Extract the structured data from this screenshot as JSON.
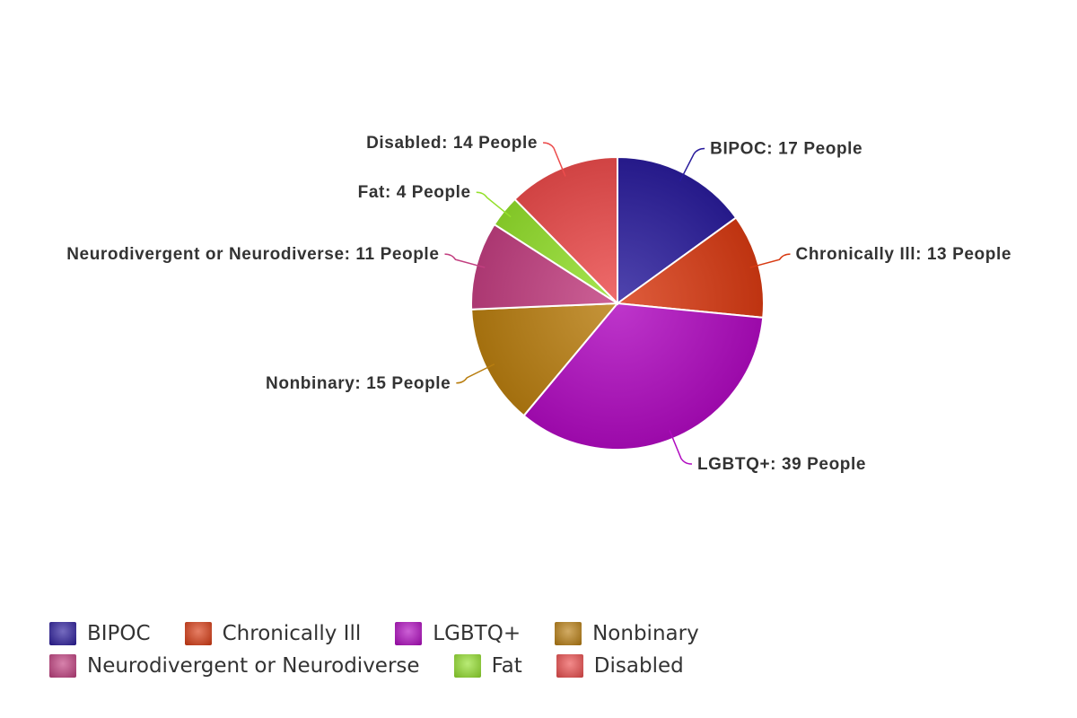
{
  "chart_data": {
    "type": "pie",
    "title": "",
    "categories": [
      "BIPOC",
      "Chronically Ill",
      "LGBTQ+",
      "Nonbinary",
      "Neurodivergent or Neurodiverse",
      "Fat",
      "Disabled"
    ],
    "values": [
      17,
      13,
      39,
      15,
      11,
      4,
      14
    ],
    "data_labels": [
      "BIPOC: 17 People",
      "Chronically Ill: 13 People",
      "LGBTQ+: 39 People",
      "Nonbinary: 15 People",
      "Neurodivergent or Neurodiverse: 11 People",
      "Fat: 4 People",
      "Disabled: 14 People"
    ],
    "colors": [
      "#2a1c9c",
      "#d83a12",
      "#b00ac0",
      "#b97e10",
      "#c23f80",
      "#94e02c",
      "#ec4c4c"
    ],
    "legend_position": "bottom-left",
    "start_angle": "12 o'clock",
    "direction": "clockwise"
  }
}
